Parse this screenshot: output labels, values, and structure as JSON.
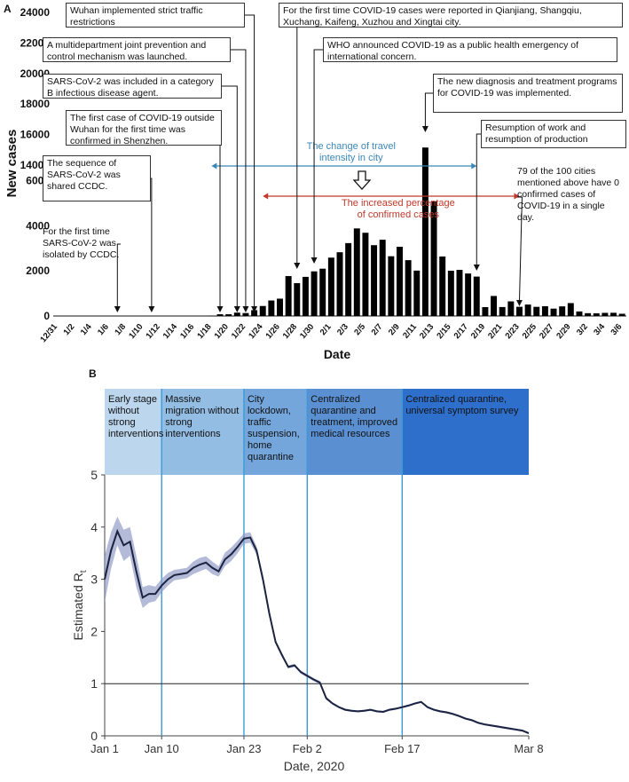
{
  "chart_data": [
    {
      "panel": "A",
      "type": "bar",
      "xlabel": "Date",
      "ylabel": "New cases",
      "y_ticks_lower": [
        "0",
        "2000",
        "4000",
        "6000"
      ],
      "y_ticks_upper": [
        "14000",
        "16000",
        "18000",
        "20000",
        "22000",
        "24000"
      ],
      "ylim_lower": [
        0,
        6500
      ],
      "ylim_upper": [
        14000,
        24000
      ],
      "categories": [
        "12/31",
        "1/1",
        "1/2",
        "1/3",
        "1/4",
        "1/5",
        "1/6",
        "1/7",
        "1/8",
        "1/9",
        "1/10",
        "1/11",
        "1/12",
        "1/13",
        "1/14",
        "1/15",
        "1/16",
        "1/17",
        "1/18",
        "1/19",
        "1/20",
        "1/21",
        "1/22",
        "1/23",
        "1/24",
        "1/25",
        "1/26",
        "1/27",
        "1/28",
        "1/29",
        "1/30",
        "1/31",
        "2/1",
        "2/2",
        "2/3",
        "2/4",
        "2/5",
        "2/6",
        "2/7",
        "2/8",
        "2/9",
        "2/10",
        "2/11",
        "2/12",
        "2/13",
        "2/14",
        "2/15",
        "2/16",
        "2/17",
        "2/18",
        "2/19",
        "2/20",
        "2/21",
        "2/22",
        "2/23",
        "2/24",
        "2/25",
        "2/26",
        "2/27",
        "2/28",
        "2/29",
        "3/1",
        "3/2",
        "3/3",
        "3/4",
        "3/5",
        "3/6"
      ],
      "tick_labels": [
        "12/31",
        "1/2",
        "1/4",
        "1/6",
        "1/8",
        "1/10",
        "1/12",
        "1/14",
        "1/16",
        "1/18",
        "1/20",
        "1/22",
        "1/24",
        "1/26",
        "1/28",
        "1/30",
        "2/1",
        "2/3",
        "2/5",
        "2/7",
        "2/9",
        "2/11",
        "2/13",
        "2/15",
        "2/17",
        "2/19",
        "2/21",
        "2/23",
        "2/25",
        "2/27",
        "2/29",
        "3/2",
        "3/4",
        "3/6"
      ],
      "values": [
        0,
        0,
        0,
        0,
        0,
        0,
        0,
        0,
        0,
        0,
        0,
        0,
        0,
        0,
        0,
        0,
        0,
        0,
        17,
        77,
        77,
        149,
        131,
        259,
        444,
        688,
        769,
        1771,
        1459,
        1737,
        1981,
        2099,
        2590,
        2829,
        3235,
        3887,
        3694,
        3143,
        3385,
        2652,
        3073,
        2478,
        2015,
        15152,
        5090,
        2641,
        2009,
        2048,
        1886,
        1749,
        394,
        889,
        397,
        648,
        409,
        508,
        406,
        433,
        327,
        427,
        573,
        202,
        125,
        119,
        139,
        143,
        99
      ],
      "bar_color": "#000000",
      "travel_band": {
        "label_line1": "The change of travel",
        "label_line2": "intensity in city",
        "color": "#3a87b7",
        "from": "1/18",
        "to": "2/18"
      },
      "confirmed_band": {
        "label_line1": "The increased percentage",
        "label_line2": "of  confirmed cases",
        "color": "#c0392b",
        "from": "1/24",
        "to": "2/23"
      },
      "annotations": [
        {
          "text": "Wuhan implemented strict traffic restrictions",
          "date": "1/23"
        },
        {
          "text": "A multidepartment joint prevention and control mechanism was launched.",
          "date": "1/22"
        },
        {
          "text": "SARS-CoV-2 was included in a category B infectious disease agent.",
          "date": "1/21"
        },
        {
          "text": "The first case of COVID-19 outside Wuhan for the first time was confirmed in Shenzhen.",
          "date": "1/19"
        },
        {
          "text": "The sequence of SARS-CoV-2 was shared CCDC.",
          "date": "1/11"
        },
        {
          "text": "For the first time SARS-CoV-2 was isolated by CCDC.",
          "date": "1/7"
        },
        {
          "text": "For the first time  COVID-19 cases were reported in Qianjiang, Shangqiu, Xuchang, Kaifeng, Xuzhou and Xingtai city.",
          "date": "1/28"
        },
        {
          "text": "WHO announced COVID-19 as a public health emergency of international concern.",
          "date": "1/30"
        },
        {
          "text": "The new diagnosis and treatment programs for COVID-19 was implemented.",
          "date": "2/12"
        },
        {
          "text": "Resumption of work and resumption of production",
          "date": "2/18"
        },
        {
          "text": "79 of the 100 cities mentioned above have 0 confirmed cases of COVID-19 in a single day.",
          "date": "2/23"
        }
      ]
    },
    {
      "panel": "B",
      "type": "line",
      "xlabel": "Date, 2020",
      "ylabel_main": "Estimated R",
      "ylabel_sub": "t",
      "ylim": [
        0,
        5
      ],
      "y_ticks": [
        "0",
        "1",
        "2",
        "3",
        "4",
        "5"
      ],
      "x_ticks": [
        {
          "label": "Jan 1",
          "day": 0
        },
        {
          "label": "Jan 10",
          "day": 9
        },
        {
          "label": "Jan 23",
          "day": 22
        },
        {
          "label": "Feb 2",
          "day": 32
        },
        {
          "label": "Feb 17",
          "day": 47
        },
        {
          "label": "Mar 8",
          "day": 67
        }
      ],
      "xlim": [
        0,
        67
      ],
      "reference_line": 1,
      "vertical_lines_days": [
        9,
        22,
        32,
        47
      ],
      "phases": [
        {
          "label": "Early stage without strong interventions",
          "from": 0,
          "to": 9,
          "color": "#bcd6ee"
        },
        {
          "label": "Massive migration without strong interventions",
          "from": 9,
          "to": 22,
          "color": "#94bde4"
        },
        {
          "label": "City lockdown, traffic suspension, home quarantine",
          "from": 22,
          "to": 32,
          "color": "#74a6dc"
        },
        {
          "label": "Centralized quarantine and treatment, improved medical resources",
          "from": 32,
          "to": 47,
          "color": "#5a90d2"
        },
        {
          "label": "Centralized quarantine, universal symptom survey",
          "from": 47,
          "to": 67,
          "color": "#2f6fcc"
        }
      ],
      "series": [
        {
          "x": [
            0,
            1,
            2,
            3,
            4,
            5,
            6,
            7,
            8,
            9,
            10,
            11,
            12,
            13,
            14,
            15,
            16,
            17,
            18,
            19,
            20,
            21,
            22,
            23,
            24,
            25,
            26,
            27,
            28,
            29,
            30,
            31,
            32,
            33,
            34,
            35,
            36,
            37,
            38,
            39,
            40,
            41,
            42,
            43,
            44,
            45,
            46,
            47,
            48,
            49,
            50,
            51,
            52,
            53,
            54,
            55,
            56,
            57,
            58,
            59,
            60,
            61,
            62,
            63,
            64,
            65,
            66,
            67
          ],
          "y": [
            3.0,
            3.55,
            3.92,
            3.65,
            3.72,
            3.15,
            2.65,
            2.72,
            2.72,
            2.88,
            3.0,
            3.08,
            3.1,
            3.12,
            3.22,
            3.28,
            3.32,
            3.22,
            3.15,
            3.38,
            3.48,
            3.62,
            3.78,
            3.8,
            3.55,
            3.0,
            2.35,
            1.8,
            1.55,
            1.32,
            1.35,
            1.22,
            1.15,
            1.08,
            1.02,
            0.72,
            0.62,
            0.55,
            0.5,
            0.48,
            0.47,
            0.48,
            0.5,
            0.47,
            0.46,
            0.5,
            0.52,
            0.55,
            0.58,
            0.62,
            0.65,
            0.55,
            0.5,
            0.47,
            0.45,
            0.42,
            0.38,
            0.33,
            0.3,
            0.25,
            0.22,
            0.2,
            0.18,
            0.16,
            0.14,
            0.12,
            0.1,
            0.05
          ],
          "lower": [
            2.55,
            3.2,
            3.65,
            3.35,
            3.45,
            2.85,
            2.45,
            2.55,
            2.58,
            2.75,
            2.88,
            2.98,
            3.0,
            3.02,
            3.1,
            3.15,
            3.2,
            3.1,
            3.05,
            3.25,
            3.35,
            3.5,
            3.68,
            3.7,
            3.47,
            2.93,
            2.3,
            1.76,
            1.51,
            1.29,
            1.32,
            1.19,
            1.12,
            1.05,
            0.99,
            0.69,
            0.6,
            0.53,
            0.48,
            0.46,
            0.45,
            0.46,
            0.48,
            0.45,
            0.44,
            0.48,
            0.5,
            0.53,
            0.56,
            0.6,
            0.63,
            0.53,
            0.48,
            0.45,
            0.43,
            0.4,
            0.36,
            0.31,
            0.28,
            0.23,
            0.2,
            0.18,
            0.16,
            0.14,
            0.12,
            0.1,
            0.08,
            0.03
          ],
          "upper": [
            3.45,
            3.9,
            4.2,
            3.95,
            4.0,
            3.45,
            2.85,
            2.89,
            2.86,
            3.01,
            3.12,
            3.18,
            3.2,
            3.22,
            3.34,
            3.41,
            3.44,
            3.34,
            3.25,
            3.51,
            3.61,
            3.74,
            3.88,
            3.9,
            3.63,
            3.07,
            2.4,
            1.84,
            1.59,
            1.35,
            1.38,
            1.25,
            1.18,
            1.11,
            1.05,
            0.75,
            0.64,
            0.57,
            0.52,
            0.5,
            0.49,
            0.5,
            0.52,
            0.49,
            0.48,
            0.52,
            0.54,
            0.57,
            0.6,
            0.64,
            0.67,
            0.57,
            0.52,
            0.49,
            0.47,
            0.44,
            0.4,
            0.35,
            0.32,
            0.27,
            0.24,
            0.22,
            0.2,
            0.18,
            0.16,
            0.14,
            0.12,
            0.07
          ]
        }
      ]
    }
  ],
  "panel_labels": {
    "a": "A",
    "b": "B"
  }
}
